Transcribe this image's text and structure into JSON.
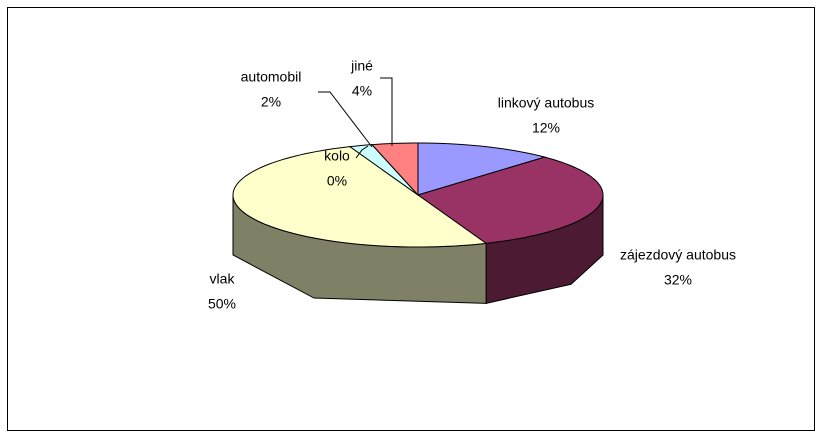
{
  "chart_data": {
    "type": "pie",
    "categories": [
      "linkový autobus",
      "zájezdový autobus",
      "vlak",
      "kolo",
      "automobil",
      "jiné"
    ],
    "values": [
      12,
      32,
      50,
      0,
      2,
      4
    ],
    "value_labels": [
      "12%",
      "32%",
      "50%",
      "0%",
      "2%",
      "4%"
    ],
    "colors": [
      "#9999ff",
      "#993366",
      "#ffffcc",
      "#ccffff",
      "#ccffff",
      "#ff8080"
    ]
  }
}
